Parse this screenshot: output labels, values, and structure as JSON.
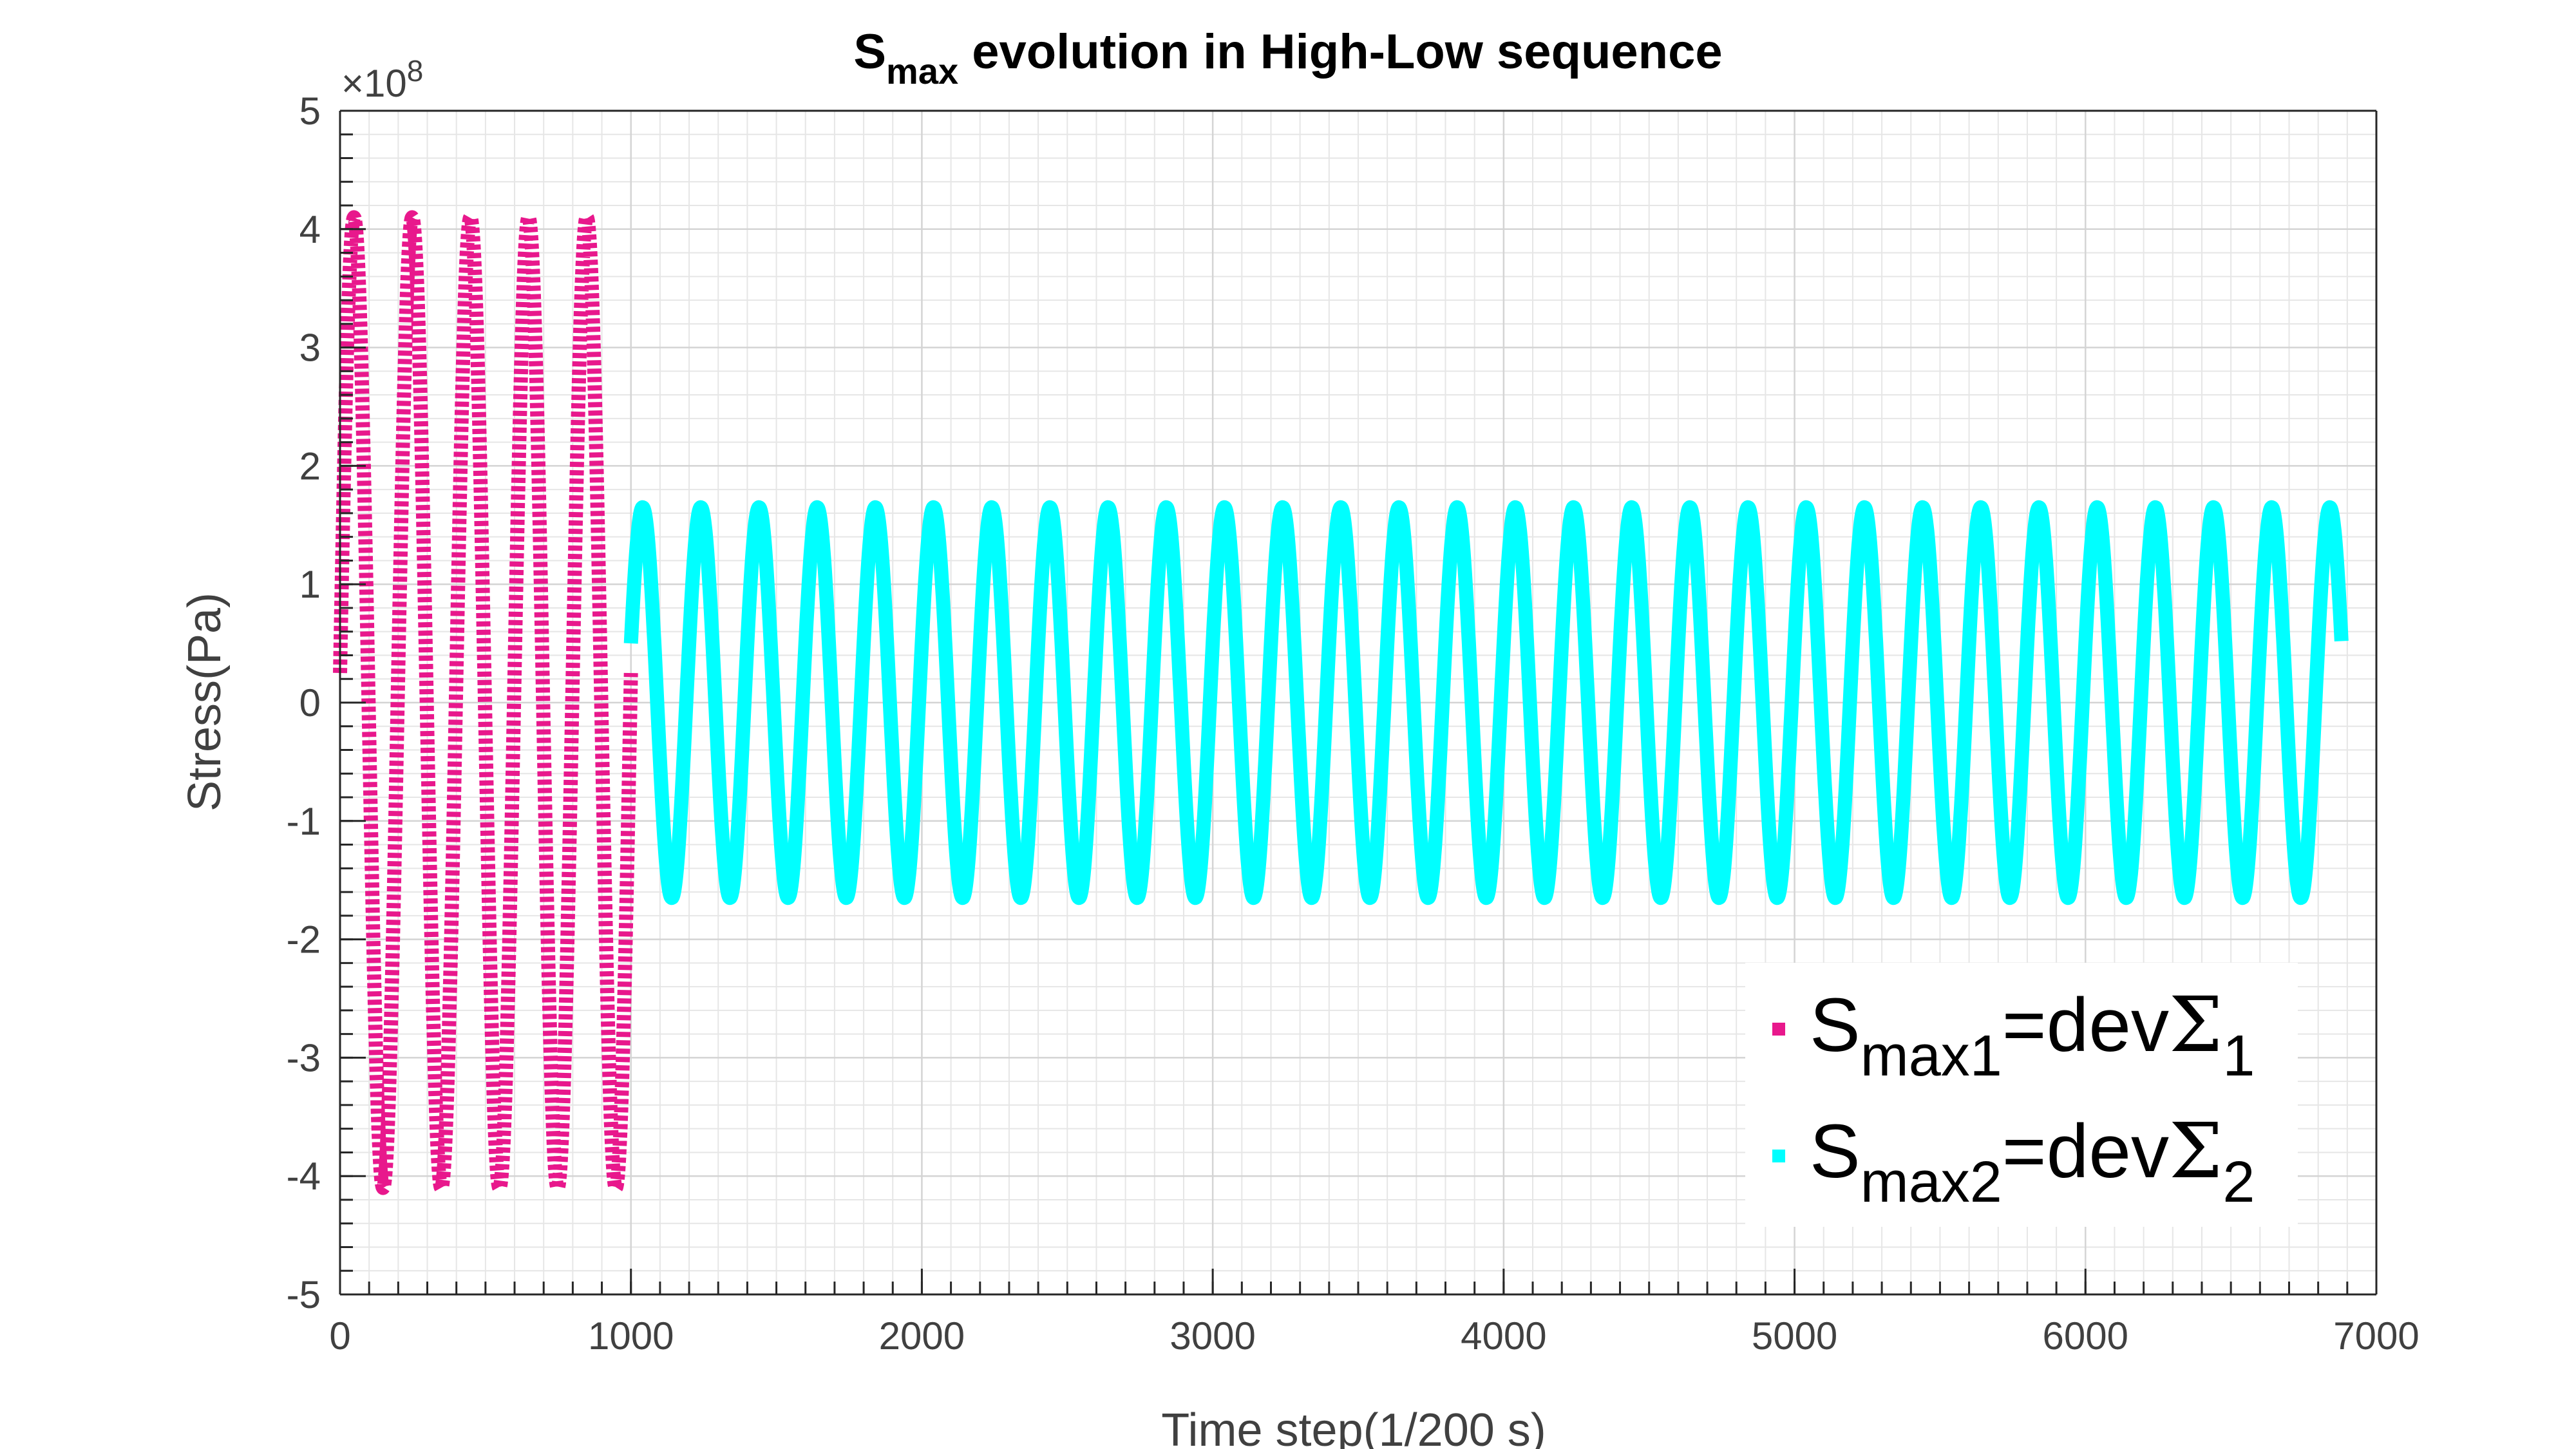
{
  "chart_data": {
    "type": "line",
    "title": {
      "base": "S",
      "subscript": "max",
      "rest": " evolution in High-Low sequence"
    },
    "xlabel": "Time step(1/200 s)",
    "ylabel": "Stress(Pa)",
    "y_exponent_label": "×10",
    "y_exponent_power": "8",
    "xlim": [
      0,
      7000
    ],
    "ylim": [
      -5,
      5
    ],
    "x_ticks": [
      0,
      1000,
      2000,
      3000,
      4000,
      5000,
      6000,
      7000
    ],
    "y_ticks": [
      5,
      4,
      3,
      2,
      1,
      0,
      -1,
      -2,
      -3,
      -4,
      -5
    ],
    "x_tick_labels": [
      "0",
      "1000",
      "2000",
      "3000",
      "4000",
      "5000",
      "6000",
      "7000"
    ],
    "y_tick_labels": [
      "5",
      "4",
      "3",
      "2",
      "1",
      "0",
      "-1",
      "-2",
      "-3",
      "-4",
      "-5"
    ],
    "grid": true,
    "legend_placement": "bottom-right",
    "series": [
      {
        "name": "S_max1=devΣ_1",
        "label_base": "S",
        "label_sub": "max1",
        "label_mid": "=dev",
        "label_sigma": "Σ",
        "label_sigma_sub": "1",
        "color": "#e8188c",
        "marker": "square",
        "x_start": 0,
        "x_end": 1000,
        "amplitude": 4.1,
        "period": 200,
        "start_value": 0.25
      },
      {
        "name": "S_max2=devΣ_2",
        "label_base": "S",
        "label_sub": "max2",
        "label_mid": "=dev",
        "label_sigma": "Σ",
        "label_sigma_sub": "2",
        "color": "#00ffff",
        "marker": "square",
        "x_start": 1000,
        "x_end": 6880,
        "amplitude": 1.65,
        "period": 200,
        "start_value": 0.5,
        "end_value": 1.05
      }
    ]
  }
}
